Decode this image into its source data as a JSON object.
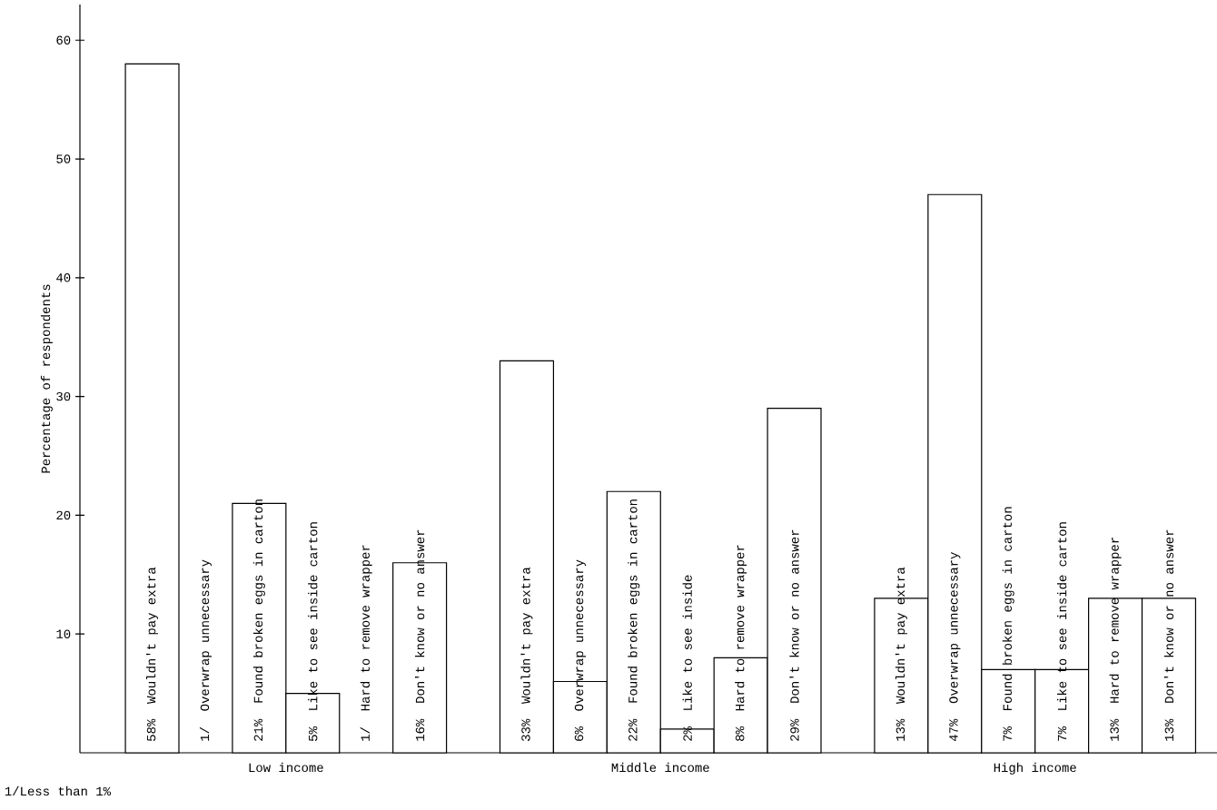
{
  "chart_data": {
    "type": "bar",
    "ylabel": "Percentage of respondents",
    "categories": [
      "Wouldn't pay extra",
      "Overwrap unnecessary",
      "Found broken eggs in carton",
      "Like to see inside carton",
      "Hard to remove wrapper",
      "Don't know or no answer",
      null,
      "Wouldn't pay extra",
      "Overwrap unnecessary",
      "Found broken eggs in carton",
      "Like to see inside",
      "Hard to remove wrapper",
      "Don't know or no answer",
      null,
      "Wouldn't pay extra",
      "Overwrap unnecessary",
      "Found broken eggs in carton",
      "Like to see inside carton",
      "Hard to remove wrapper",
      "Don't know or no answer"
    ],
    "series": [
      {
        "name": "Low income",
        "color": "#ffffff",
        "values": [
          58,
          null,
          21,
          5,
          null,
          16,
          null,
          null,
          null,
          null,
          null,
          null,
          null,
          null,
          null,
          null,
          null,
          null,
          null,
          null
        ],
        "value_labels": [
          "58%",
          "1/",
          "21%",
          "5%",
          "1/",
          "16%",
          null,
          null,
          null,
          null,
          null,
          null,
          null,
          null,
          null,
          null,
          null,
          null,
          null,
          null
        ]
      },
      {
        "name": "Middle income",
        "color": "#ffffff",
        "values": [
          null,
          null,
          null,
          null,
          null,
          null,
          null,
          33,
          6,
          22,
          2,
          8,
          29,
          null,
          null,
          null,
          null,
          null,
          null,
          null
        ],
        "value_labels": [
          null,
          null,
          null,
          null,
          null,
          null,
          null,
          "33%",
          "6%",
          "22%",
          "2%",
          "8%",
          "29%",
          null,
          null,
          null,
          null,
          null,
          null,
          null
        ]
      },
      {
        "name": "High income",
        "color": "#ffffff",
        "values": [
          null,
          null,
          null,
          null,
          null,
          null,
          null,
          null,
          null,
          null,
          null,
          null,
          null,
          null,
          13,
          47,
          7,
          7,
          13,
          13
        ],
        "value_labels": [
          null,
          null,
          null,
          null,
          null,
          null,
          null,
          null,
          null,
          null,
          null,
          null,
          null,
          null,
          "13%",
          "47%",
          "7%",
          "7%",
          "13%",
          "13%"
        ]
      }
    ],
    "ylim": [
      0,
      63
    ],
    "yticks": [
      10,
      20,
      30,
      40,
      50,
      60
    ],
    "tick_labels": "y",
    "annotations": [
      "1/Less than 1%"
    ]
  }
}
